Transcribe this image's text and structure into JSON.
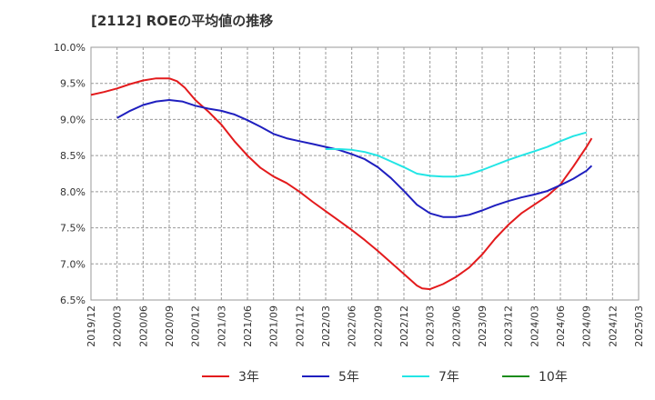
{
  "chart_data": {
    "type": "line",
    "title": "[2112]  ROEの平均値の推移",
    "xlabel": "",
    "ylabel": "",
    "x": [
      "2019/12",
      "2020/03",
      "2020/06",
      "2020/09",
      "2020/12",
      "2021/03",
      "2021/06",
      "2021/09",
      "2021/12",
      "2022/03",
      "2022/06",
      "2022/09",
      "2022/12",
      "2023/03",
      "2023/06",
      "2023/09",
      "2023/12",
      "2024/03",
      "2024/06",
      "2024/09",
      "2024/12",
      "2025/03"
    ],
    "x_range": [
      0,
      21
    ],
    "ylim": [
      6.5,
      10.0
    ],
    "yticks": [
      "6.5%",
      "7.0%",
      "7.5%",
      "8.0%",
      "8.5%",
      "9.0%",
      "9.5%",
      "10.0%"
    ],
    "ytick_values": [
      6.5,
      7.0,
      7.5,
      8.0,
      8.5,
      9.0,
      9.5,
      10.0
    ],
    "grid": true,
    "legend_position": "bottom",
    "series": [
      {
        "name": "3年",
        "color": "#e31a1c",
        "points": [
          [
            0,
            9.34
          ],
          [
            0.5,
            9.38
          ],
          [
            1,
            9.43
          ],
          [
            1.5,
            9.49
          ],
          [
            2,
            9.54
          ],
          [
            2.5,
            9.57
          ],
          [
            3,
            9.57
          ],
          [
            3.3,
            9.53
          ],
          [
            3.6,
            9.44
          ],
          [
            4,
            9.27
          ],
          [
            4.5,
            9.11
          ],
          [
            5,
            8.93
          ],
          [
            5.5,
            8.7
          ],
          [
            6,
            8.5
          ],
          [
            6.5,
            8.33
          ],
          [
            7,
            8.21
          ],
          [
            7.5,
            8.12
          ],
          [
            8,
            8.0
          ],
          [
            8.5,
            7.86
          ],
          [
            9,
            7.73
          ],
          [
            9.5,
            7.6
          ],
          [
            10,
            7.47
          ],
          [
            10.5,
            7.33
          ],
          [
            11,
            7.18
          ],
          [
            11.5,
            7.02
          ],
          [
            12,
            6.86
          ],
          [
            12.5,
            6.7
          ],
          [
            12.7,
            6.66
          ],
          [
            13,
            6.65
          ],
          [
            13.5,
            6.72
          ],
          [
            14,
            6.82
          ],
          [
            14.5,
            6.95
          ],
          [
            15,
            7.13
          ],
          [
            15.5,
            7.35
          ],
          [
            16,
            7.54
          ],
          [
            16.5,
            7.7
          ],
          [
            17,
            7.82
          ],
          [
            17.5,
            7.94
          ],
          [
            18,
            8.1
          ],
          [
            18.5,
            8.35
          ],
          [
            19,
            8.62
          ],
          [
            19.2,
            8.74
          ]
        ]
      },
      {
        "name": "5年",
        "color": "#1f1fbf",
        "points": [
          [
            1,
            9.02
          ],
          [
            1.5,
            9.12
          ],
          [
            2,
            9.2
          ],
          [
            2.5,
            9.25
          ],
          [
            3,
            9.27
          ],
          [
            3.5,
            9.25
          ],
          [
            4,
            9.19
          ],
          [
            4.5,
            9.15
          ],
          [
            5,
            9.12
          ],
          [
            5.5,
            9.07
          ],
          [
            6,
            8.99
          ],
          [
            6.5,
            8.9
          ],
          [
            7,
            8.8
          ],
          [
            7.5,
            8.74
          ],
          [
            8,
            8.7
          ],
          [
            8.5,
            8.66
          ],
          [
            9,
            8.62
          ],
          [
            9.5,
            8.58
          ],
          [
            10,
            8.52
          ],
          [
            10.5,
            8.45
          ],
          [
            11,
            8.34
          ],
          [
            11.5,
            8.19
          ],
          [
            12,
            8.01
          ],
          [
            12.5,
            7.82
          ],
          [
            13,
            7.7
          ],
          [
            13.5,
            7.65
          ],
          [
            14,
            7.65
          ],
          [
            14.5,
            7.68
          ],
          [
            15,
            7.74
          ],
          [
            15.5,
            7.81
          ],
          [
            16,
            7.87
          ],
          [
            16.5,
            7.92
          ],
          [
            17,
            7.96
          ],
          [
            17.5,
            8.01
          ],
          [
            18,
            8.09
          ],
          [
            18.5,
            8.18
          ],
          [
            19,
            8.29
          ],
          [
            19.2,
            8.36
          ]
        ]
      },
      {
        "name": "7年",
        "color": "#22e5e5",
        "points": [
          [
            9,
            8.59
          ],
          [
            9.5,
            8.59
          ],
          [
            10,
            8.58
          ],
          [
            10.5,
            8.55
          ],
          [
            11,
            8.5
          ],
          [
            11.5,
            8.42
          ],
          [
            12,
            8.34
          ],
          [
            12.5,
            8.25
          ],
          [
            13,
            8.22
          ],
          [
            13.5,
            8.21
          ],
          [
            14,
            8.21
          ],
          [
            14.5,
            8.24
          ],
          [
            15,
            8.3
          ],
          [
            15.5,
            8.37
          ],
          [
            16,
            8.44
          ],
          [
            16.5,
            8.5
          ],
          [
            17,
            8.56
          ],
          [
            17.5,
            8.62
          ],
          [
            18,
            8.7
          ],
          [
            18.5,
            8.77
          ],
          [
            19,
            8.82
          ]
        ]
      },
      {
        "name": "10年",
        "color": "#1a8c1a",
        "points": []
      }
    ]
  }
}
